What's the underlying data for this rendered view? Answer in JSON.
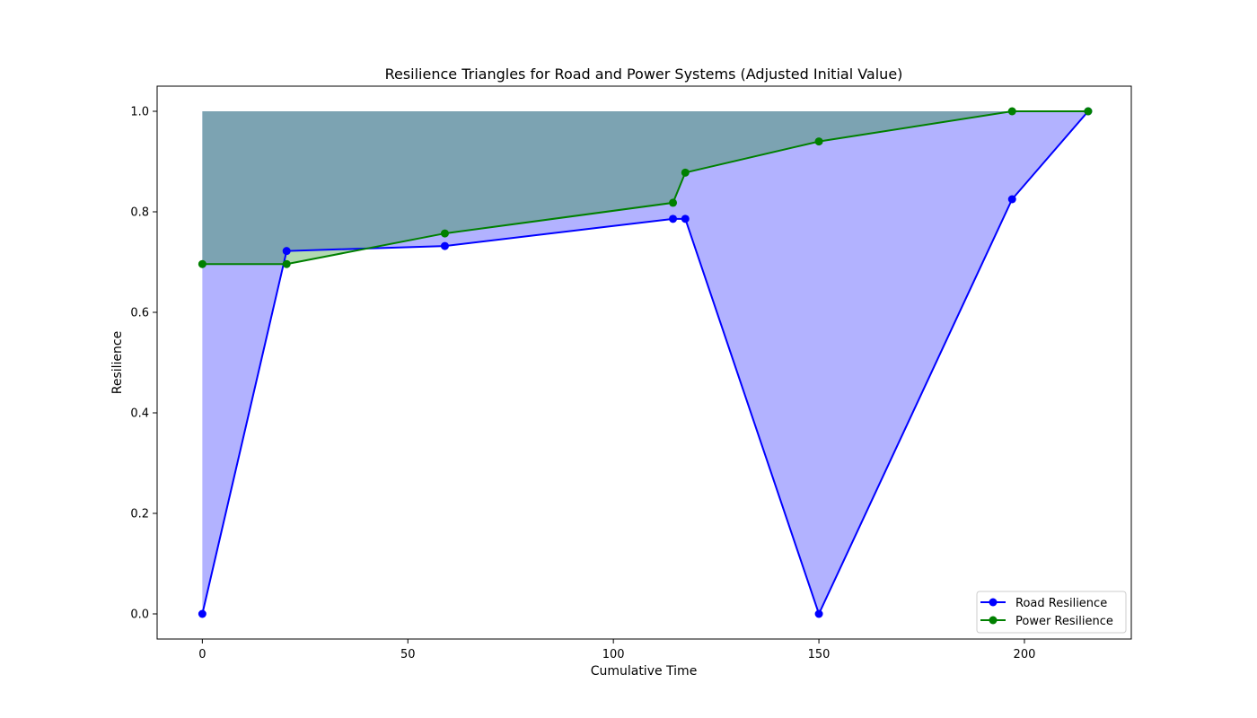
{
  "chart_data": {
    "type": "line",
    "title": "Resilience Triangles for Road and Power Systems (Adjusted Initial Value)",
    "xlabel": "Cumulative Time",
    "ylabel": "Resilience",
    "xlim": [
      -11,
      226
    ],
    "ylim": [
      -0.05,
      1.05
    ],
    "xticks": [
      0,
      50,
      100,
      150,
      200
    ],
    "xtick_labels": [
      "0",
      "50",
      "100",
      "150",
      "200"
    ],
    "yticks": [
      0.0,
      0.2,
      0.4,
      0.6,
      0.8,
      1.0
    ],
    "ytick_labels": [
      "0.0",
      "0.2",
      "0.4",
      "0.6",
      "0.8",
      "1.0"
    ],
    "grid": false,
    "legend_position": "lower-right",
    "fill_baseline": 1.0,
    "series": [
      {
        "name": "Road Resilience",
        "color": "#0000ff",
        "fill_color": "#0000ff",
        "marker": "circle",
        "x": [
          0,
          20.5,
          59,
          114.5,
          117.5,
          150,
          197,
          215.5
        ],
        "y": [
          0.0,
          0.722,
          0.732,
          0.786,
          0.786,
          0.0,
          0.825,
          1.0
        ]
      },
      {
        "name": "Power Resilience",
        "color": "#008000",
        "fill_color": "#008000",
        "marker": "circle",
        "x": [
          0,
          20.5,
          59,
          114.5,
          117.5,
          150,
          197,
          215.5
        ],
        "y": [
          0.696,
          0.696,
          0.757,
          0.818,
          0.878,
          0.94,
          1.0,
          1.0
        ]
      }
    ]
  }
}
